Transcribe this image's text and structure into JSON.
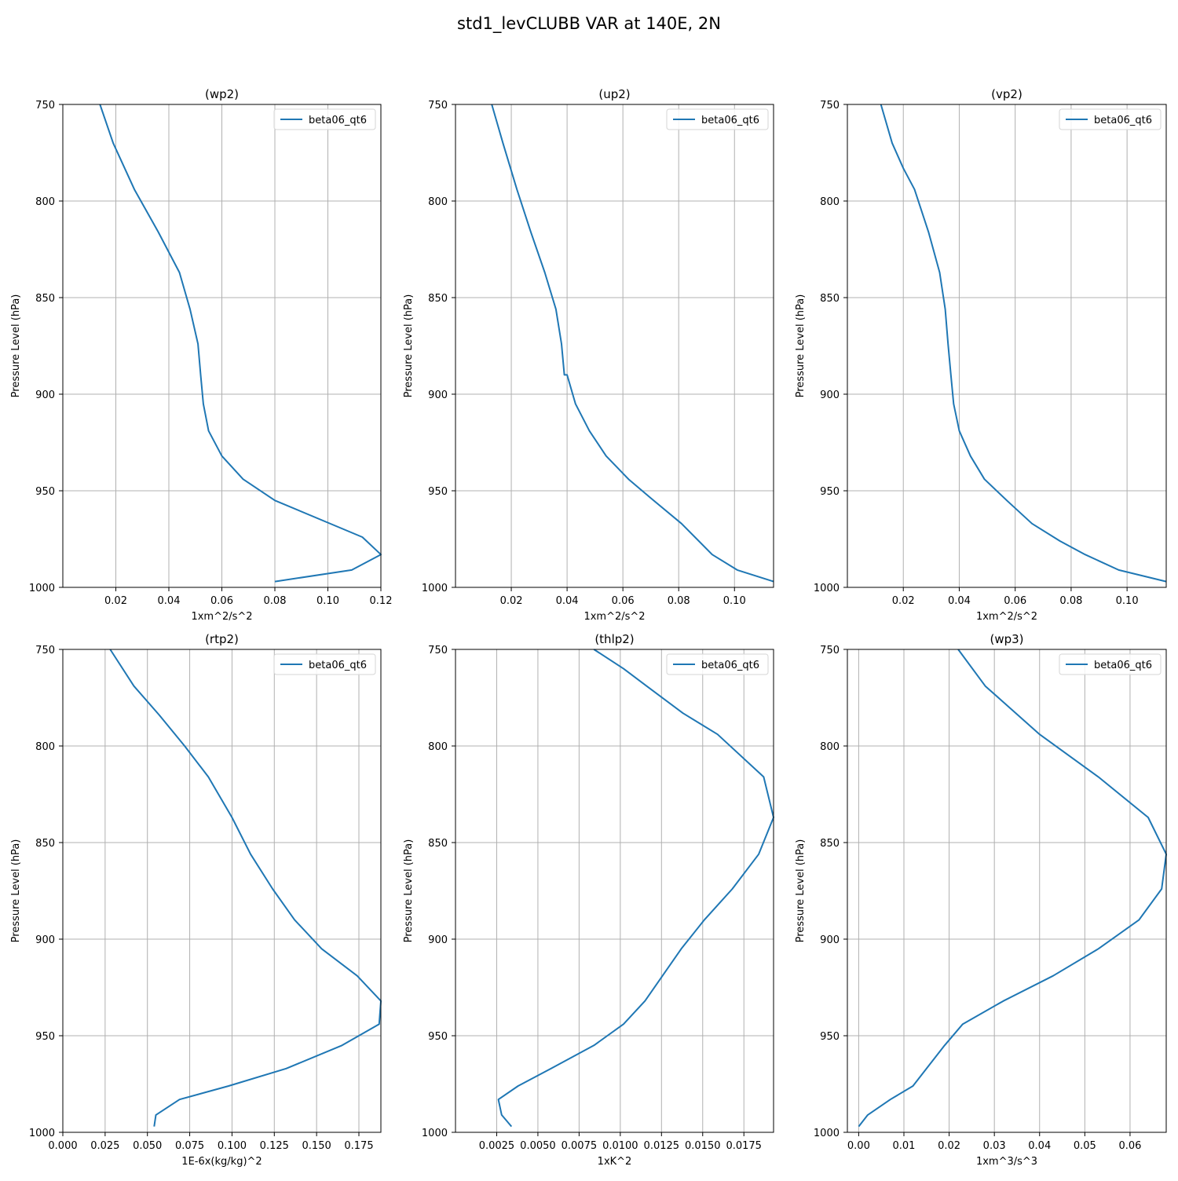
{
  "figure": {
    "title": "std1_levCLUBB VAR at 140E, 2N",
    "line_color": "#1f77b4",
    "grid_color": "#b0b0b0"
  },
  "chart_data": [
    {
      "type": "line",
      "title": "(wp2)",
      "xlabel": "1xm^2/s^2",
      "ylabel": "Pressure Level (hPa)",
      "xlim": [
        0,
        0.12
      ],
      "ylim": [
        1000,
        750
      ],
      "xticks": [
        0.02,
        0.04,
        0.06,
        0.08,
        0.1,
        0.12
      ],
      "xtick_labels": [
        "0.02",
        "0.04",
        "0.06",
        "0.08",
        "0.10",
        "0.12"
      ],
      "yticks": [
        750,
        800,
        850,
        900,
        950,
        1000
      ],
      "ytick_labels": [
        "750",
        "800",
        "850",
        "900",
        "950",
        "1000"
      ],
      "grid": true,
      "legend": "upper right",
      "series": [
        {
          "name": "beta06_qt6",
          "x": [
            0.014,
            0.019,
            0.027,
            0.036,
            0.044,
            0.048,
            0.051,
            0.052,
            0.053,
            0.055,
            0.06,
            0.068,
            0.08,
            0.113,
            0.12,
            0.109,
            0.08
          ],
          "y": [
            750,
            770,
            794,
            816,
            837,
            856,
            874,
            890,
            905,
            919,
            932,
            944,
            955,
            974,
            983,
            991,
            997
          ]
        }
      ]
    },
    {
      "type": "line",
      "title": "(up2)",
      "xlabel": "1xm^2/s^2",
      "ylabel": "Pressure Level (hPa)",
      "xlim": [
        0,
        0.114
      ],
      "ylim": [
        1000,
        750
      ],
      "xticks": [
        0.02,
        0.04,
        0.06,
        0.08,
        0.1
      ],
      "xtick_labels": [
        "0.02",
        "0.04",
        "0.06",
        "0.08",
        "0.10"
      ],
      "yticks": [
        750,
        800,
        850,
        900,
        950,
        1000
      ],
      "ytick_labels": [
        "750",
        "800",
        "850",
        "900",
        "950",
        "1000"
      ],
      "grid": true,
      "legend": "upper right",
      "series": [
        {
          "name": "beta06_qt6",
          "x": [
            0.013,
            0.017,
            0.022,
            0.027,
            0.032,
            0.036,
            0.038,
            0.039,
            0.04,
            0.043,
            0.048,
            0.054,
            0.062,
            0.071,
            0.081,
            0.092,
            0.101,
            0.114
          ],
          "y": [
            750,
            770,
            794,
            816,
            837,
            856,
            874,
            890,
            890,
            905,
            919,
            932,
            944,
            955,
            967,
            983,
            991,
            997
          ]
        }
      ]
    },
    {
      "type": "line",
      "title": "(vp2)",
      "xlabel": "1xm^2/s^2",
      "ylabel": "Pressure Level (hPa)",
      "xlim": [
        0,
        0.114
      ],
      "ylim": [
        1000,
        750
      ],
      "xticks": [
        0.02,
        0.04,
        0.06,
        0.08,
        0.1
      ],
      "xtick_labels": [
        "0.02",
        "0.04",
        "0.06",
        "0.08",
        "0.10"
      ],
      "yticks": [
        750,
        800,
        850,
        900,
        950,
        1000
      ],
      "ytick_labels": [
        "750",
        "800",
        "850",
        "900",
        "950",
        "1000"
      ],
      "grid": true,
      "legend": "upper right",
      "series": [
        {
          "name": "beta06_qt6",
          "x": [
            0.012,
            0.016,
            0.02,
            0.024,
            0.029,
            0.033,
            0.035,
            0.036,
            0.037,
            0.038,
            0.04,
            0.044,
            0.049,
            0.057,
            0.066,
            0.076,
            0.085,
            0.097,
            0.114
          ],
          "y": [
            750,
            770,
            783,
            794,
            816,
            837,
            856,
            874,
            890,
            905,
            919,
            932,
            944,
            955,
            967,
            976,
            983,
            991,
            997
          ]
        }
      ]
    },
    {
      "type": "line",
      "title": "(rtp2)",
      "xlabel": "1E-6x(kg/kg)^2",
      "ylabel": "Pressure Level (hPa)",
      "xlim": [
        0,
        0.188
      ],
      "ylim": [
        1000,
        750
      ],
      "xticks": [
        0,
        0.025,
        0.05,
        0.075,
        0.1,
        0.125,
        0.15,
        0.175
      ],
      "xtick_labels": [
        "0.000",
        "0.025",
        "0.050",
        "0.075",
        "0.100",
        "0.125",
        "0.150",
        "0.175"
      ],
      "yticks": [
        750,
        800,
        850,
        900,
        950,
        1000
      ],
      "ytick_labels": [
        "750",
        "800",
        "850",
        "900",
        "950",
        "1000"
      ],
      "grid": true,
      "legend": "upper right",
      "series": [
        {
          "name": "beta06_qt6",
          "x": [
            0.028,
            0.042,
            0.057,
            0.072,
            0.086,
            0.1,
            0.111,
            0.124,
            0.137,
            0.153,
            0.174,
            0.188,
            0.187,
            0.165,
            0.132,
            0.098,
            0.069,
            0.055,
            0.054
          ],
          "y": [
            750,
            769,
            784,
            800,
            816,
            837,
            856,
            874,
            890,
            905,
            919,
            932,
            944,
            955,
            967,
            976,
            983,
            991,
            997
          ]
        }
      ]
    },
    {
      "type": "line",
      "title": "(thlp2)",
      "xlabel": "1xK^2",
      "ylabel": "Pressure Level (hPa)",
      "xlim": [
        0,
        0.0193
      ],
      "ylim": [
        1000,
        750
      ],
      "xticks": [
        0.0025,
        0.005,
        0.0075,
        0.01,
        0.0125,
        0.015,
        0.0175
      ],
      "xtick_labels": [
        "0.0025",
        "0.0050",
        "0.0075",
        "0.0100",
        "0.0125",
        "0.0150",
        "0.0175"
      ],
      "yticks": [
        750,
        800,
        850,
        900,
        950,
        1000
      ],
      "ytick_labels": [
        "750",
        "800",
        "850",
        "900",
        "950",
        "1000"
      ],
      "grid": true,
      "legend": "upper right",
      "series": [
        {
          "name": "beta06_qt6",
          "x": [
            0.0084,
            0.0102,
            0.0116,
            0.0138,
            0.0159,
            0.0187,
            0.0193,
            0.0184,
            0.0168,
            0.0151,
            0.0137,
            0.0115,
            0.0102,
            0.0084,
            0.0058,
            0.0038,
            0.0026,
            0.0028,
            0.0034
          ],
          "y": [
            750,
            760,
            769,
            783,
            794,
            816,
            837,
            856,
            874,
            890,
            905,
            932,
            944,
            955,
            967,
            976,
            983,
            991,
            997
          ]
        }
      ]
    },
    {
      "type": "line",
      "title": "(wp3)",
      "xlabel": "1xm^3/s^3",
      "ylabel": "Pressure Level (hPa)",
      "xlim": [
        -0.0025,
        0.068
      ],
      "ylim": [
        1000,
        750
      ],
      "xticks": [
        0,
        0.01,
        0.02,
        0.03,
        0.04,
        0.05,
        0.06
      ],
      "xtick_labels": [
        "0.00",
        "0.01",
        "0.02",
        "0.03",
        "0.04",
        "0.05",
        "0.06"
      ],
      "yticks": [
        750,
        800,
        850,
        900,
        950,
        1000
      ],
      "ytick_labels": [
        "750",
        "800",
        "850",
        "900",
        "950",
        "1000"
      ],
      "grid": true,
      "legend": "upper right",
      "series": [
        {
          "name": "beta06_qt6",
          "x": [
            0.022,
            0.028,
            0.04,
            0.053,
            0.064,
            0.068,
            0.067,
            0.062,
            0.053,
            0.043,
            0.032,
            0.023,
            0.019,
            0.015,
            0.012,
            0.007,
            0.002,
            0.0
          ],
          "y": [
            750,
            769,
            794,
            816,
            837,
            856,
            874,
            890,
            905,
            919,
            932,
            944,
            955,
            967,
            976,
            983,
            991,
            997
          ]
        }
      ]
    }
  ]
}
